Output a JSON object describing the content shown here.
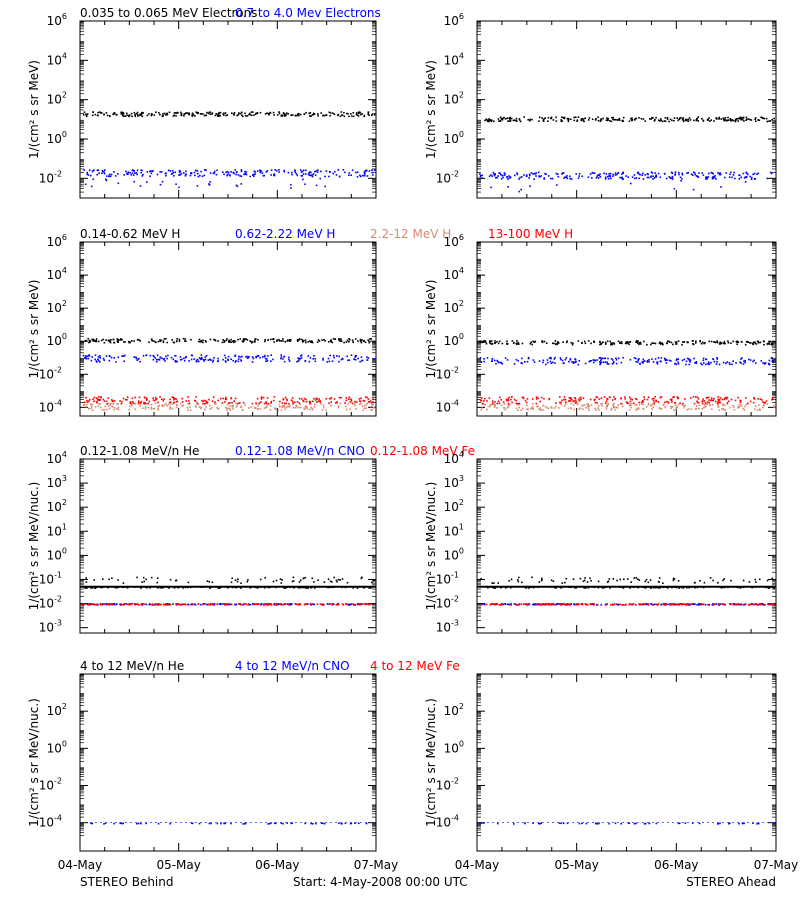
{
  "colors": {
    "black": "#000000",
    "blue": "#0000ff",
    "salmon": "#d88a6e",
    "red": "#ff0000"
  },
  "footer": {
    "left": "STEREO Behind",
    "center": "Start:  4-May-2008 00:00 UTC",
    "right": "STEREO Ahead"
  },
  "chart_data": [
    {
      "type": "scatter",
      "title_parts": [
        {
          "text": "0.035 to 0.065 MeV Electrons",
          "color": "#000000"
        },
        {
          "text": "0.7 to 4.0 Mev Electrons",
          "color": "#0000ff"
        }
      ],
      "ylabel": "1/(cm² s sr MeV)",
      "yscale": "log",
      "ylim": [
        0.001,
        1000000
      ],
      "ytick_exponents": [
        -2,
        0,
        2,
        4,
        6
      ],
      "x_tick_labels": [
        "04-May",
        "05-May",
        "06-May",
        "07-May"
      ],
      "xlim_days": [
        0,
        3
      ],
      "behind": [
        {
          "name": "0.035 to 0.065 MeV Electrons",
          "color": "#000000",
          "level": 20
        },
        {
          "name": "0.7 to 4.0 Mev Electrons",
          "color": "#0000ff",
          "level": 0.02
        }
      ],
      "ahead": [
        {
          "name": "0.035 to 0.065 MeV Electrons",
          "color": "#000000",
          "level": 11
        },
        {
          "name": "0.7 to 4.0 Mev Electrons",
          "color": "#0000ff",
          "level": 0.015
        }
      ]
    },
    {
      "type": "scatter",
      "title_parts": [
        {
          "text": "0.14-0.62 MeV H",
          "color": "#000000"
        },
        {
          "text": "0.62-2.22 MeV H",
          "color": "#0000ff"
        },
        {
          "text": "2.2-12 MeV H",
          "color": "#d88a6e"
        },
        {
          "text": "13-100 MeV H",
          "color": "#ff0000"
        }
      ],
      "ylabel": "1/(cm² s sr MeV)",
      "yscale": "log",
      "ylim": [
        3e-05,
        1000000
      ],
      "ytick_exponents": [
        -4,
        -2,
        0,
        2,
        4,
        6
      ],
      "x_tick_labels": [
        "04-May",
        "05-May",
        "06-May",
        "07-May"
      ],
      "xlim_days": [
        0,
        3
      ],
      "behind": [
        {
          "name": "0.14-0.62 MeV H",
          "color": "#000000",
          "level": 1.2
        },
        {
          "name": "0.62-2.22 MeV H",
          "color": "#0000ff",
          "level": 0.1
        },
        {
          "name": "2.2-12 MeV H",
          "color": "#d88a6e",
          "level": 0.00012
        },
        {
          "name": "13-100 MeV H",
          "color": "#ff0000",
          "level": 0.0003
        }
      ],
      "ahead": [
        {
          "name": "0.14-0.62 MeV H",
          "color": "#000000",
          "level": 0.9
        },
        {
          "name": "0.62-2.22 MeV H",
          "color": "#0000ff",
          "level": 0.07
        },
        {
          "name": "2.2-12 MeV H",
          "color": "#d88a6e",
          "level": 0.00012
        },
        {
          "name": "13-100 MeV H",
          "color": "#ff0000",
          "level": 0.0003
        }
      ]
    },
    {
      "type": "scatter",
      "title_parts": [
        {
          "text": "0.12-1.08 MeV/n He",
          "color": "#000000"
        },
        {
          "text": "0.12-1.08 MeV/n CNO",
          "color": "#0000ff"
        },
        {
          "text": "0.12-1.08 MeV Fe",
          "color": "#ff0000"
        }
      ],
      "ylabel": "1/(cm² s sr MeV/nuc.)",
      "yscale": "log",
      "ylim": [
        0.0006,
        10000
      ],
      "ytick_exponents": [
        -3,
        -2,
        -1,
        0,
        1,
        2,
        3,
        4
      ],
      "x_tick_labels": [
        "04-May",
        "05-May",
        "06-May",
        "07-May"
      ],
      "xlim_days": [
        0,
        3
      ],
      "behind": [
        {
          "name": "0.12-1.08 MeV/n He",
          "color": "#000000",
          "level": 0.05
        },
        {
          "name": "0.12-1.08 MeV/n CNO",
          "color": "#0000ff",
          "level": 0.01
        },
        {
          "name": "0.12-1.08 MeV Fe",
          "color": "#ff0000",
          "level": 0.01
        }
      ],
      "ahead": [
        {
          "name": "0.12-1.08 MeV/n He",
          "color": "#000000",
          "level": 0.05
        },
        {
          "name": "0.12-1.08 MeV/n CNO",
          "color": "#0000ff",
          "level": 0.01
        },
        {
          "name": "0.12-1.08 MeV Fe",
          "color": "#ff0000",
          "level": 0.01
        }
      ]
    },
    {
      "type": "scatter",
      "title_parts": [
        {
          "text": "4 to 12 MeV/n He",
          "color": "#000000"
        },
        {
          "text": "4 to 12 MeV/n CNO",
          "color": "#0000ff"
        },
        {
          "text": "4 to 12 MeV Fe",
          "color": "#ff0000"
        }
      ],
      "ylabel": "1/(cm² s sr MeV/nuc.)",
      "yscale": "log",
      "ylim": [
        3e-06,
        10000
      ],
      "ytick_exponents": [
        -4,
        -2,
        0,
        2
      ],
      "x_tick_labels": [
        "04-May",
        "05-May",
        "06-May",
        "07-May"
      ],
      "xlim_days": [
        0,
        3
      ],
      "behind": [
        {
          "name": "4 to 12 MeV/n CNO",
          "color": "#0000ff",
          "level": 0.0001
        }
      ],
      "ahead": [
        {
          "name": "4 to 12 MeV/n CNO",
          "color": "#0000ff",
          "level": 0.0001
        }
      ]
    }
  ]
}
